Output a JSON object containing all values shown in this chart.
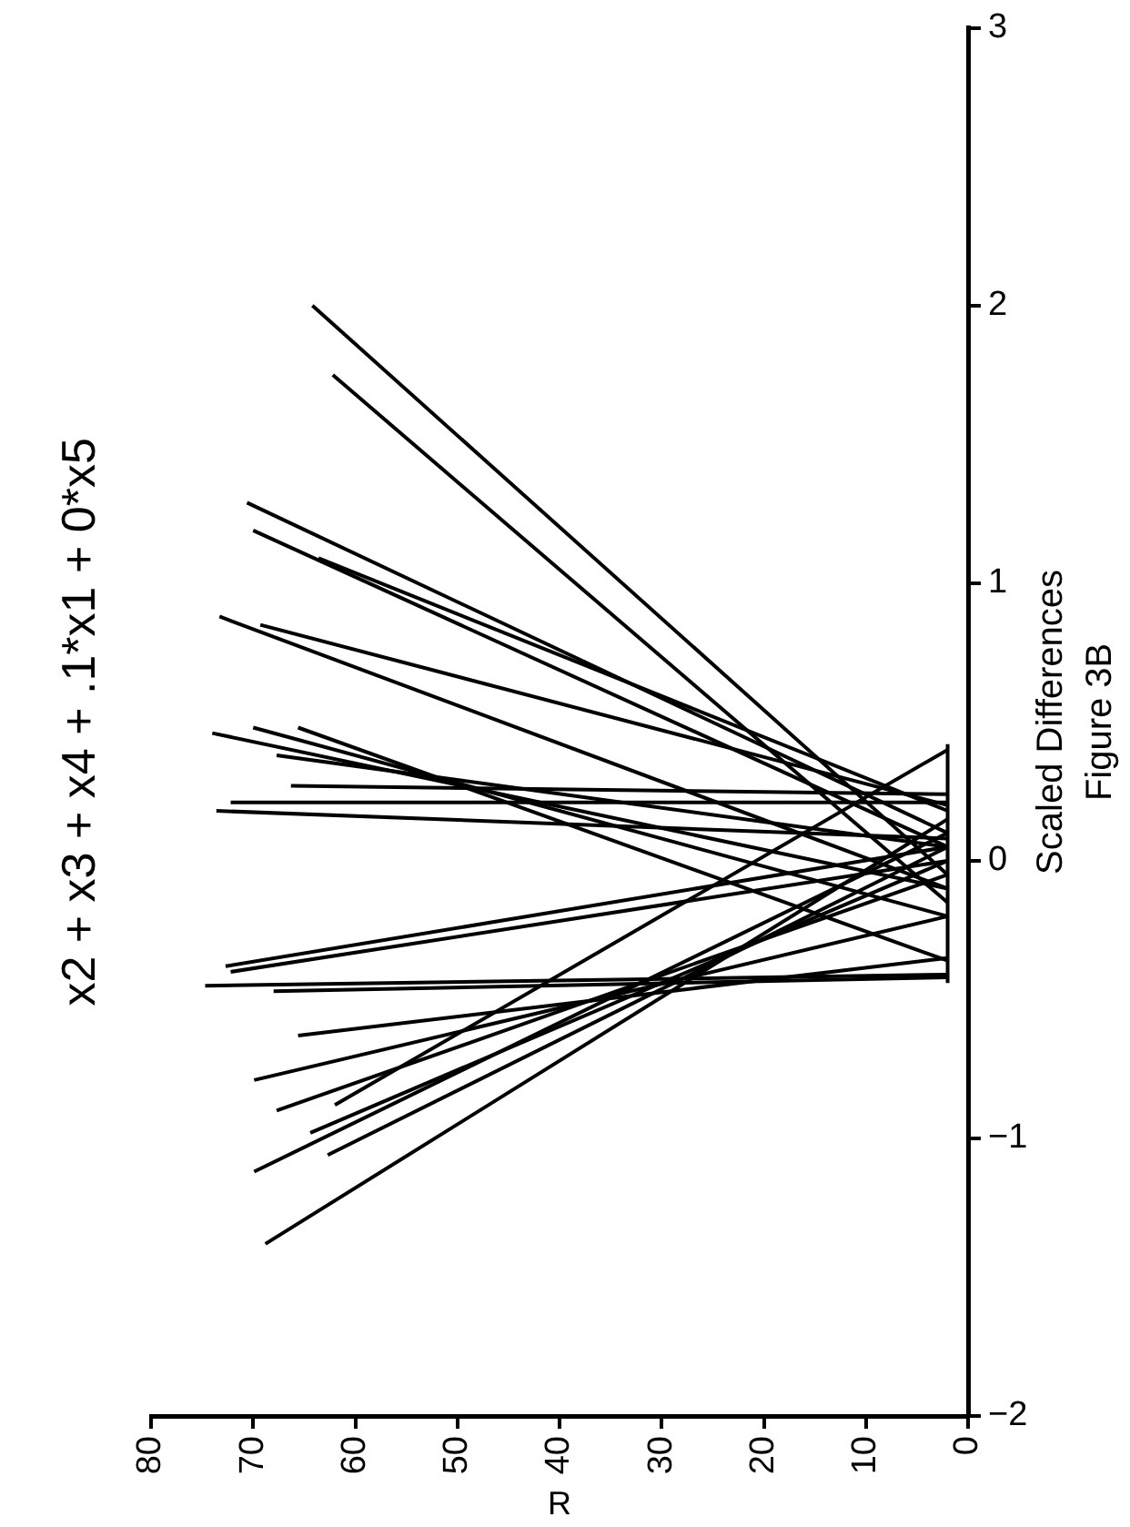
{
  "chart_data": {
    "type": "line",
    "title": "x2 + x3 + x4 + .1*x1 + 0*x5",
    "xlabel": "R",
    "ylabel": "Scaled Differences",
    "annotations": [
      "Figure 3B"
    ],
    "xlim": [
      80,
      0
    ],
    "ylim": [
      -2,
      3
    ],
    "xticks": [
      80,
      70,
      60,
      50,
      40,
      30,
      20,
      10,
      0
    ],
    "yticks": [
      -2,
      -1,
      0,
      1,
      2,
      3
    ],
    "grid": false,
    "legend": false,
    "marker": "none",
    "line_style": "solid",
    "series": [
      {
        "color": "#000000",
        "values": [
          -0.05,
          2.0
        ],
        "x": [
          2,
          64.2
        ]
      },
      {
        "color": "#000000",
        "values": [
          -0.15,
          1.75
        ],
        "x": [
          2,
          62.2
        ]
      },
      {
        "color": "#000000",
        "values": [
          0.1,
          1.29
        ],
        "x": [
          2,
          70.6
        ]
      },
      {
        "color": "#000000",
        "values": [
          0.05,
          1.19
        ],
        "x": [
          2,
          70
        ]
      },
      {
        "color": "#000000",
        "values": [
          0.18,
          1.09
        ],
        "x": [
          2,
          63.6
        ]
      },
      {
        "color": "#000000",
        "values": [
          -0.1,
          0.88
        ],
        "x": [
          2,
          73.3
        ]
      },
      {
        "color": "#000000",
        "values": [
          0.2,
          0.85
        ],
        "x": [
          2,
          69.3
        ]
      },
      {
        "color": "#000000",
        "values": [
          -0.1,
          0.46
        ],
        "x": [
          2,
          74
        ]
      },
      {
        "color": "#000000",
        "values": [
          -0.2,
          0.48
        ],
        "x": [
          2,
          70
        ]
      },
      {
        "color": "#000000",
        "values": [
          -0.36,
          0.48
        ],
        "x": [
          2,
          65.6
        ]
      },
      {
        "color": "#000000",
        "values": [
          0.05,
          0.38
        ],
        "x": [
          2,
          67.7
        ]
      },
      {
        "color": "#000000",
        "values": [
          0.24,
          0.27
        ],
        "x": [
          2,
          66.3
        ]
      },
      {
        "color": "#000000",
        "values": [
          0.21,
          0.21
        ],
        "x": [
          2,
          72.2
        ]
      },
      {
        "color": "#000000",
        "values": [
          0.08,
          0.18
        ],
        "x": [
          2,
          73.6
        ]
      },
      {
        "color": "#000000",
        "values": [
          0.05,
          -0.38
        ],
        "x": [
          2,
          72.7
        ]
      },
      {
        "color": "#000000",
        "values": [
          0.0,
          -0.4
        ],
        "x": [
          2,
          72.2
        ]
      },
      {
        "color": "#000000",
        "values": [
          -0.41,
          -0.45
        ],
        "x": [
          2,
          74.7
        ]
      },
      {
        "color": "#000000",
        "values": [
          -0.42,
          -0.47
        ],
        "x": [
          2,
          68
        ]
      },
      {
        "color": "#000000",
        "values": [
          -0.35,
          -0.63
        ],
        "x": [
          2,
          65.6
        ]
      },
      {
        "color": "#000000",
        "values": [
          -0.2,
          -0.79
        ],
        "x": [
          2,
          69.9
        ]
      },
      {
        "color": "#000000",
        "values": [
          -0.05,
          -0.9
        ],
        "x": [
          2,
          67.7
        ]
      },
      {
        "color": "#000000",
        "values": [
          0.4,
          -0.88
        ],
        "x": [
          2,
          62
        ]
      },
      {
        "color": "#000000",
        "values": [
          0.0,
          -0.98
        ],
        "x": [
          2,
          64.4
        ]
      },
      {
        "color": "#000000",
        "values": [
          0.1,
          -1.12
        ],
        "x": [
          2,
          69.9
        ]
      },
      {
        "color": "#000000",
        "values": [
          0.05,
          -1.06
        ],
        "x": [
          2,
          62.7
        ]
      },
      {
        "color": "#000000",
        "values": [
          0.15,
          -1.38
        ],
        "x": [
          2,
          68.8
        ]
      },
      {
        "color": "#000000",
        "values": [
          -0.44,
          0.42
        ],
        "x": [
          2,
          2
        ]
      }
    ]
  }
}
